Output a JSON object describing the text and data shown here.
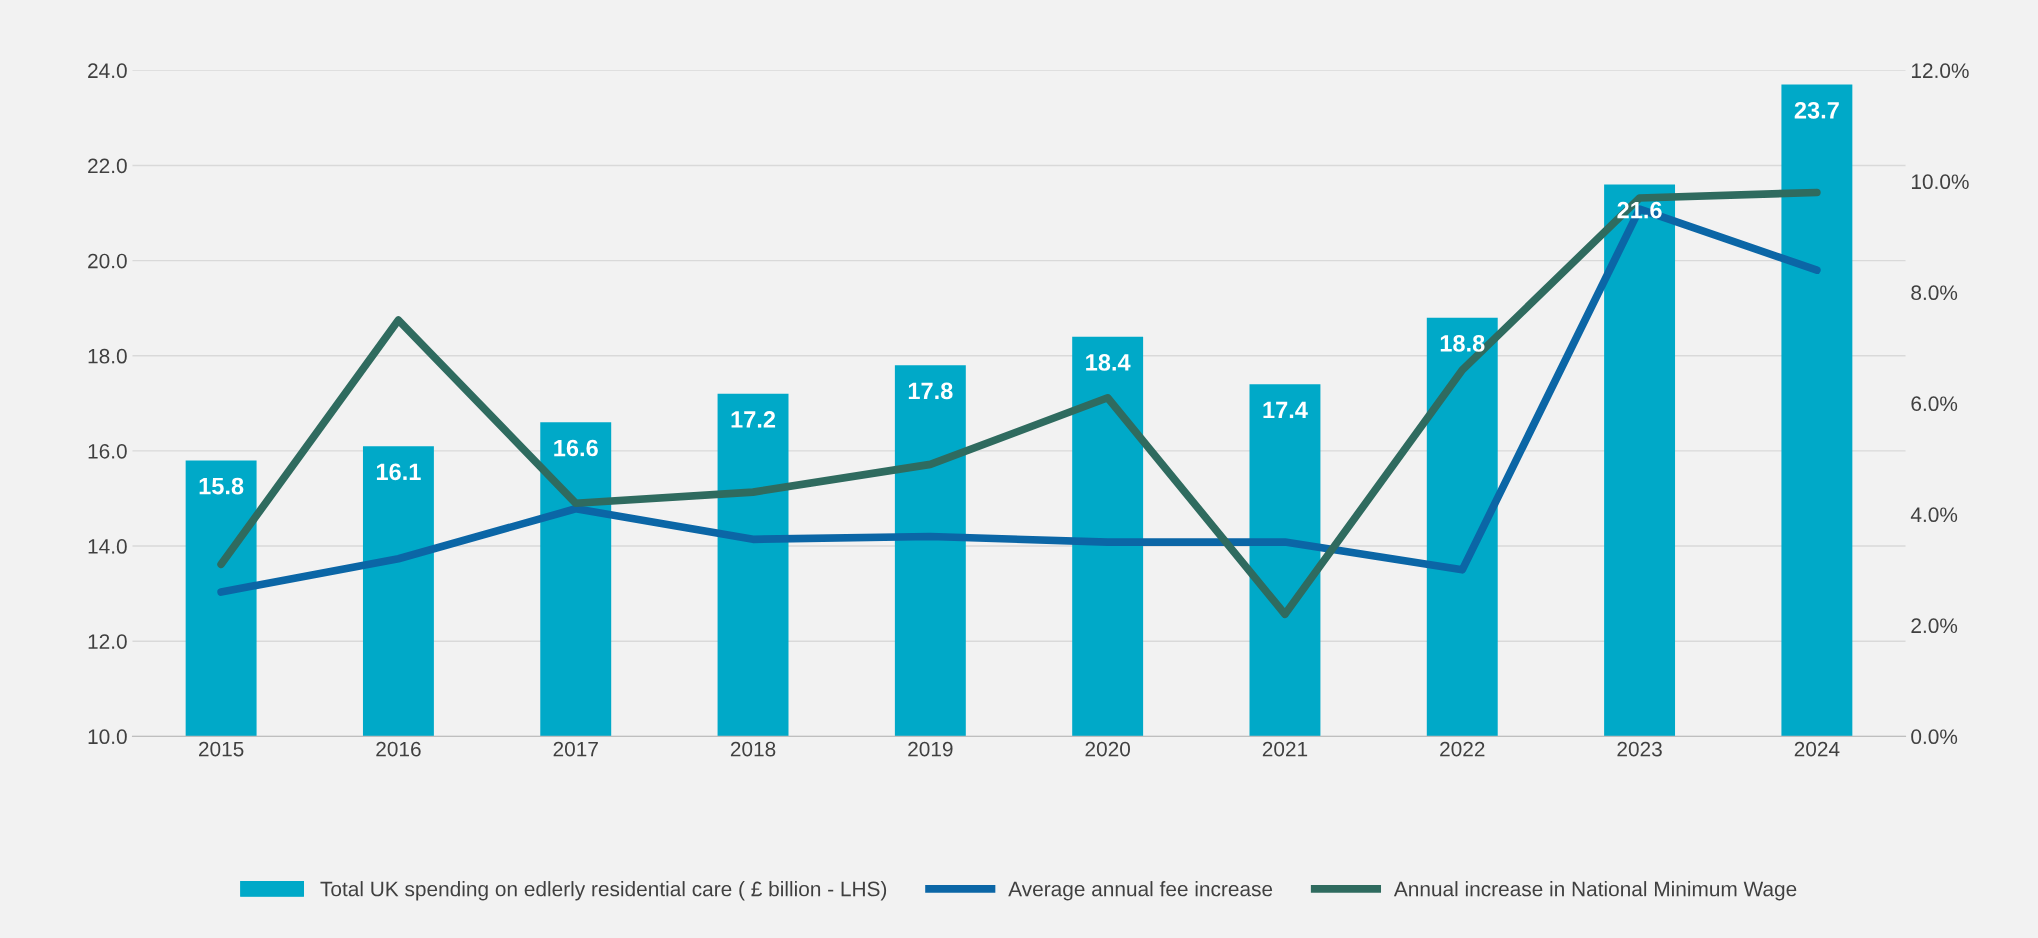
{
  "chart_data": {
    "type": "bar",
    "categories": [
      "2015",
      "2016",
      "2017",
      "2018",
      "2019",
      "2020",
      "2021",
      "2022",
      "2023",
      "2024"
    ],
    "series": [
      {
        "name": "Total UK spending on edlerly residential care ( £ billion - LHS)",
        "color": "#00a9c8",
        "values": [
          15.8,
          16.1,
          16.6,
          17.2,
          17.8,
          18.4,
          17.4,
          18.8,
          21.6,
          23.7
        ],
        "value_labels": [
          "15.8",
          "16.1",
          "16.6",
          "17.2",
          "17.8",
          "18.4",
          "17.4",
          "18.8",
          "21.6",
          "23.7"
        ]
      },
      {
        "name": "Average annual fee increase",
        "type": "line",
        "axis": "y2",
        "color": "#0b66a6",
        "values": [
          2.6,
          3.2,
          4.1,
          3.55,
          3.6,
          3.5,
          3.5,
          3.0,
          9.5,
          8.4
        ]
      },
      {
        "name": "Annual increase in National Minimum Wage",
        "type": "line",
        "axis": "y2",
        "color": "#2f6b5f",
        "values": [
          3.1,
          7.5,
          4.2,
          4.4,
          4.9,
          6.1,
          2.2,
          6.6,
          9.7,
          9.8
        ]
      }
    ],
    "ylim": [
      10,
      24
    ],
    "yticks": [
      {
        "value": 10,
        "label": "10.0"
      },
      {
        "value": 12,
        "label": "12.0"
      },
      {
        "value": 14,
        "label": "14.0"
      },
      {
        "value": 16,
        "label": "16.0"
      },
      {
        "value": 18,
        "label": "18.0"
      },
      {
        "value": 20,
        "label": "20.0"
      },
      {
        "value": 22,
        "label": "22.0"
      },
      {
        "value": 24,
        "label": "24.0"
      }
    ],
    "y2lim": [
      0,
      12
    ],
    "y2ticks": [
      {
        "value": 0,
        "label": "0.0%"
      },
      {
        "value": 2,
        "label": "2.0%"
      },
      {
        "value": 4,
        "label": "4.0%"
      },
      {
        "value": 6,
        "label": "6.0%"
      },
      {
        "value": 8,
        "label": "8.0%"
      },
      {
        "value": 10,
        "label": "10.0%"
      },
      {
        "value": 12,
        "label": "12.0%"
      }
    ],
    "grid": "y",
    "legend": "bottom",
    "marker": "none",
    "line_style": "solid"
  }
}
